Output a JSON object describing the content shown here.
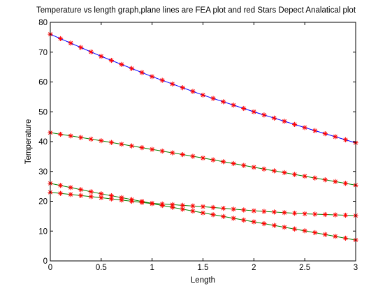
{
  "chart_data": {
    "type": "line",
    "title": "Temperature vs length graph,plane lines are FEA plot and red Stars Depect Analatical plot",
    "xlabel": "Length",
    "ylabel": "Temperature",
    "xlim": [
      0,
      3
    ],
    "ylim": [
      0,
      80
    ],
    "xticks": [
      "0",
      "0.5",
      "1",
      "1.5",
      "2",
      "2.5",
      "3"
    ],
    "yticks": [
      "0",
      "10",
      "20",
      "30",
      "40",
      "50",
      "60",
      "70",
      "80"
    ],
    "grid": false,
    "colors": {
      "fea_line": "#0000ff",
      "analytical_marker": "#ff0000",
      "other_lines": "#008000"
    },
    "series": [
      {
        "x": [
          0,
          0.5,
          1,
          1.5,
          2,
          2.5,
          3
        ],
        "y": [
          76,
          68.6,
          61.8,
          55.6,
          50,
          44.7,
          39.6
        ],
        "line_color": "#0000ff",
        "marker_color": "#ff0000"
      },
      {
        "x": [
          0,
          0.5,
          1,
          1.5,
          2,
          2.5,
          3
        ],
        "y": [
          43,
          40.3,
          37.4,
          34.5,
          31.4,
          28.4,
          25.4
        ],
        "line_color": "#008000",
        "marker_color": "#ff0000"
      },
      {
        "x": [
          0,
          0.5,
          1,
          1.5,
          2,
          2.5,
          3
        ],
        "y": [
          26,
          22.5,
          19.3,
          18.2,
          16.8,
          15.8,
          15.2
        ],
        "line_color": "#008000",
        "marker_color": "#ff0000"
      },
      {
        "x": [
          0,
          0.5,
          1,
          1.5,
          2,
          2.5,
          3
        ],
        "y": [
          23,
          21.2,
          19.2,
          16.1,
          13.1,
          10.1,
          7
        ],
        "line_color": "#008000",
        "marker_color": "#ff0000"
      }
    ]
  }
}
